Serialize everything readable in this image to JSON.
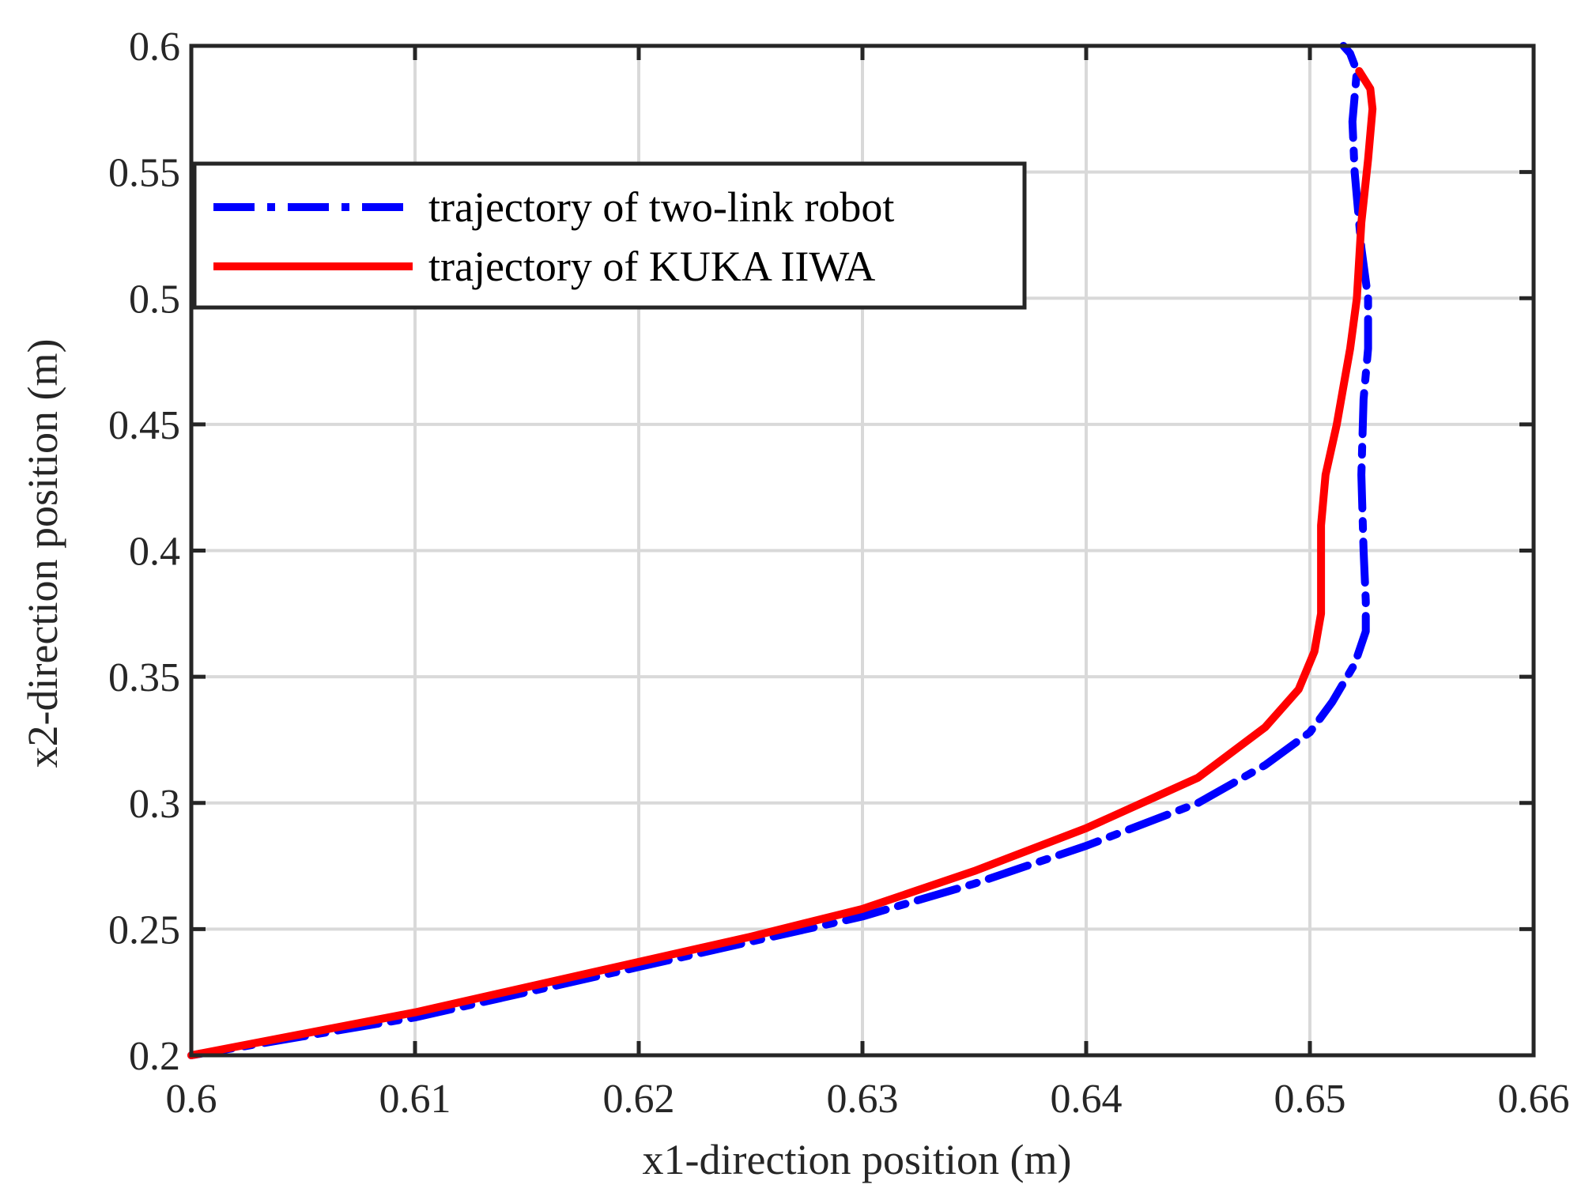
{
  "chart_data": {
    "type": "line",
    "title": "",
    "xlabel": "x1-direction position (m)",
    "ylabel": "x2-direction position (m)",
    "xlim": [
      0.6,
      0.66
    ],
    "ylim": [
      0.2,
      0.6
    ],
    "xticks": [
      "0.6",
      "0.61",
      "0.62",
      "0.63",
      "0.64",
      "0.65",
      "0.66"
    ],
    "yticks": [
      "0.2",
      "0.25",
      "0.3",
      "0.35",
      "0.4",
      "0.45",
      "0.5",
      "0.55",
      "0.6"
    ],
    "grid": true,
    "legend_position": "top-left",
    "series": [
      {
        "name": "trajectory of two-link robot",
        "color": "#0000ff",
        "style": "dash-dot",
        "x": [
          0.6,
          0.61,
          0.62,
          0.625,
          0.63,
          0.635,
          0.64,
          0.645,
          0.648,
          0.65,
          0.651,
          0.652,
          0.6525,
          0.6525,
          0.6524,
          0.6523,
          0.6524,
          0.6526,
          0.6526,
          0.6523,
          0.652,
          0.6519,
          0.6521,
          0.6518,
          0.6515
        ],
        "y": [
          0.2,
          0.215,
          0.235,
          0.245,
          0.255,
          0.268,
          0.283,
          0.3,
          0.315,
          0.328,
          0.34,
          0.355,
          0.368,
          0.38,
          0.4,
          0.43,
          0.46,
          0.48,
          0.5,
          0.52,
          0.55,
          0.57,
          0.59,
          0.597,
          0.6
        ]
      },
      {
        "name": "trajectory of KUKA IIWA",
        "color": "#ff0000",
        "style": "solid",
        "x": [
          0.6,
          0.61,
          0.62,
          0.625,
          0.63,
          0.635,
          0.64,
          0.645,
          0.648,
          0.6495,
          0.6502,
          0.6505,
          0.6505,
          0.6505,
          0.6507,
          0.6512,
          0.6515,
          0.6518,
          0.6521,
          0.6523,
          0.6526,
          0.6528,
          0.6527,
          0.6522
        ],
        "y": [
          0.2,
          0.217,
          0.237,
          0.247,
          0.258,
          0.273,
          0.29,
          0.31,
          0.33,
          0.345,
          0.36,
          0.375,
          0.39,
          0.41,
          0.43,
          0.45,
          0.465,
          0.48,
          0.5,
          0.53,
          0.555,
          0.575,
          0.583,
          0.59
        ]
      }
    ]
  }
}
